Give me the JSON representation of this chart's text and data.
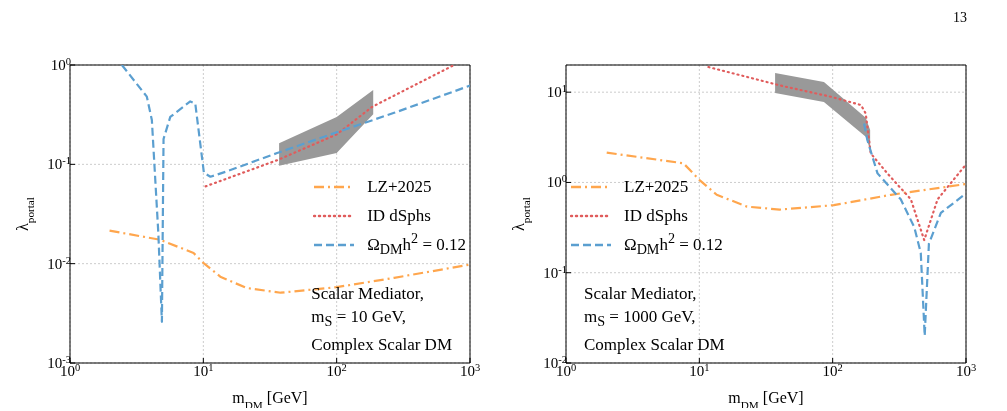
{
  "chart_data": [
    {
      "type": "line",
      "xlabel": "m$_{DM}$ [GeV]",
      "ylabel": "λ$_{portal}$",
      "log": "xy",
      "grid": true,
      "legend": "center right",
      "xlim": [
        1,
        1000
      ],
      "xticks": [
        {
          "value": 1,
          "label": "10$^{0}$"
        },
        {
          "value": 10,
          "label": "10$^{1}$"
        },
        {
          "value": 100,
          "label": "10$^{2}$"
        },
        {
          "value": 1000,
          "label": "10$^{3}$"
        }
      ],
      "ylim": [
        0.001,
        1
      ],
      "yticks": [
        {
          "value": 0.001,
          "label": "10$^{-3}$"
        },
        {
          "value": 0.01,
          "label": "10$^{-2}$"
        },
        {
          "value": 0.1,
          "label": "10$^{-1}$"
        },
        {
          "value": 1,
          "label": "10$^{0}$"
        }
      ],
      "annotations": [
        "Scalar Mediator,\nm$_{S}$ = 10 GeV,\nComplex Scalar DM"
      ],
      "series": [
        {
          "color": "#999999",
          "x": [
            37,
            100,
            188
          ],
          "values": [
            null,
            null,
            null
          ],
          "lower": [
            0.097,
            0.13,
            0.32
          ],
          "upper": [
            0.163,
            0.3,
            0.56
          ]
        },
        {
          "name": "LZ+2025",
          "color": "#ffa64d",
          "line_style": "dashdot",
          "x": [
            1.98,
            4.75,
            8.45,
            10,
            13.4,
            21,
            38,
            100,
            270,
            1000
          ],
          "values": [
            0.0215,
            0.0174,
            0.0128,
            0.0102,
            0.0074,
            0.0057,
            0.0051,
            0.0058,
            0.0072,
            0.0098
          ]
        },
        {
          "name": "ID dSphs",
          "color": "#e05c5c",
          "line_style": "dotted",
          "x": [
            10.4,
            35.8,
            100,
            185,
            760
          ],
          "values": [
            0.06,
            0.11,
            0.2,
            0.38,
            1.0
          ]
        },
        {
          "name": "Ω$_{DM}$h$^{2}$ = 0.12",
          "color": "#5b9fd0",
          "line_style": "dashed",
          "x": [
            2.45,
            3.77,
            4.11,
            4.6,
            4.89,
            5.03,
            5.65,
            7.98,
            8.7,
            10.1,
            11.3,
            15,
            35.8,
            100,
            270,
            1000
          ],
          "values": [
            1.0,
            0.48,
            0.28,
            0.02,
            0.0026,
            0.18,
            0.3,
            0.43,
            0.41,
            0.082,
            0.075,
            0.085,
            0.13,
            0.21,
            0.33,
            0.62
          ]
        }
      ]
    },
    {
      "type": "line",
      "xlabel": "m$_{DM}$ [GeV]",
      "ylabel": "λ$_{portal}$",
      "log": "xy",
      "grid": true,
      "legend": "center left",
      "xlim": [
        1,
        1000
      ],
      "xticks": [
        {
          "value": 1,
          "label": "10$^{0}$"
        },
        {
          "value": 10,
          "label": "10$^{1}$"
        },
        {
          "value": 100,
          "label": "10$^{2}$"
        },
        {
          "value": 1000,
          "label": "10$^{3}$"
        }
      ],
      "ylim": [
        0.01,
        20
      ],
      "yticks": [
        {
          "value": 0.01,
          "label": "10$^{-2}$"
        },
        {
          "value": 0.1,
          "label": "10$^{-1}$"
        },
        {
          "value": 1,
          "label": "10$^{0}$"
        },
        {
          "value": 10,
          "label": "10$^{1}$"
        }
      ],
      "annotations": [
        "Scalar Mediator,\nm$_{S}$ = 1000 GeV,\nComplex Scalar DM",
        "13"
      ],
      "series": [
        {
          "color": "#999999",
          "x": [
            37,
            86,
            177,
            191
          ],
          "values": [
            null,
            null,
            null,
            null
          ],
          "lower": [
            9.8,
            7.8,
            3.2,
            2.3
          ],
          "upper": [
            16.3,
            13,
            5.2,
            3.8
          ]
        },
        {
          "name": "LZ+2025",
          "color": "#ffa64d",
          "line_style": "dashdot",
          "x": [
            2.02,
            7.6,
            10,
            13.5,
            22.8,
            40,
            102,
            274,
            1000
          ],
          "values": [
            2.14,
            1.63,
            1.07,
            0.73,
            0.54,
            0.5,
            0.56,
            0.73,
            0.96
          ]
        },
        {
          "name": "ID dSphs",
          "color": "#e05c5c",
          "line_style": "dotted",
          "x": [
            11.7,
            40,
            97,
            163,
            177,
            193,
            257,
            386,
            486,
            612,
            971
          ],
          "values": [
            19,
            11.9,
            8.9,
            7.2,
            5.8,
            2.1,
            1.26,
            0.65,
            0.23,
            0.65,
            1.5
          ]
        },
        {
          "name": "Ω$_{DM}$h$^{2}$ = 0.12",
          "color": "#5b9fd0",
          "line_style": "dashed",
          "x": [
            172,
            182,
            217,
            324,
            409,
            458,
            490,
            527,
            648,
            971
          ],
          "values": [
            4.5,
            2.95,
            1.26,
            0.65,
            0.32,
            0.166,
            0.02,
            0.21,
            0.46,
            0.73
          ]
        }
      ]
    }
  ]
}
